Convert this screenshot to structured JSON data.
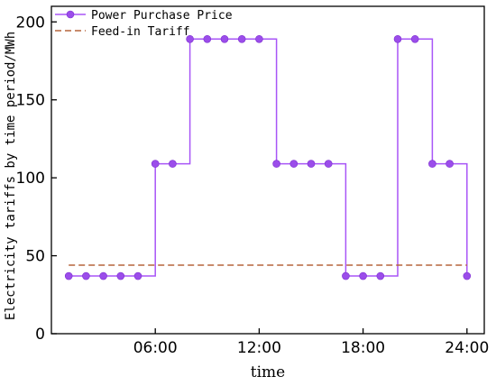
{
  "chart_data": {
    "type": "line",
    "xlabel": "time",
    "ylabel": "Electricity tariffs by time period/MWh",
    "xlim": [
      0,
      25
    ],
    "ylim": [
      0,
      210
    ],
    "x_ticks": [
      6,
      12,
      18,
      24
    ],
    "x_tick_labels": [
      "06:00",
      "12:00",
      "18:00",
      "24:00"
    ],
    "y_ticks": [
      0,
      50,
      100,
      150,
      200
    ],
    "y_tick_labels": [
      "0",
      "50",
      "100",
      "150",
      "200"
    ],
    "grid": false,
    "legend_position": "top-left",
    "series": [
      {
        "name": "Power Purchase Price",
        "style": "step-markers",
        "color": "#a855f7",
        "marker_color": "#9b4dea",
        "x": [
          1,
          2,
          3,
          4,
          5,
          6,
          7,
          8,
          9,
          10,
          11,
          12,
          13,
          14,
          15,
          16,
          17,
          18,
          19,
          20,
          21,
          22,
          23,
          24
        ],
        "values": [
          37,
          37,
          37,
          37,
          37,
          109,
          109,
          189,
          189,
          189,
          189,
          189,
          109,
          109,
          109,
          109,
          37,
          37,
          37,
          189,
          189,
          109,
          109,
          37
        ]
      },
      {
        "name": "Feed-in Tariff",
        "style": "dashed",
        "color": "#b5653c",
        "x": [
          1,
          24
        ],
        "values": [
          44,
          44
        ]
      }
    ]
  }
}
